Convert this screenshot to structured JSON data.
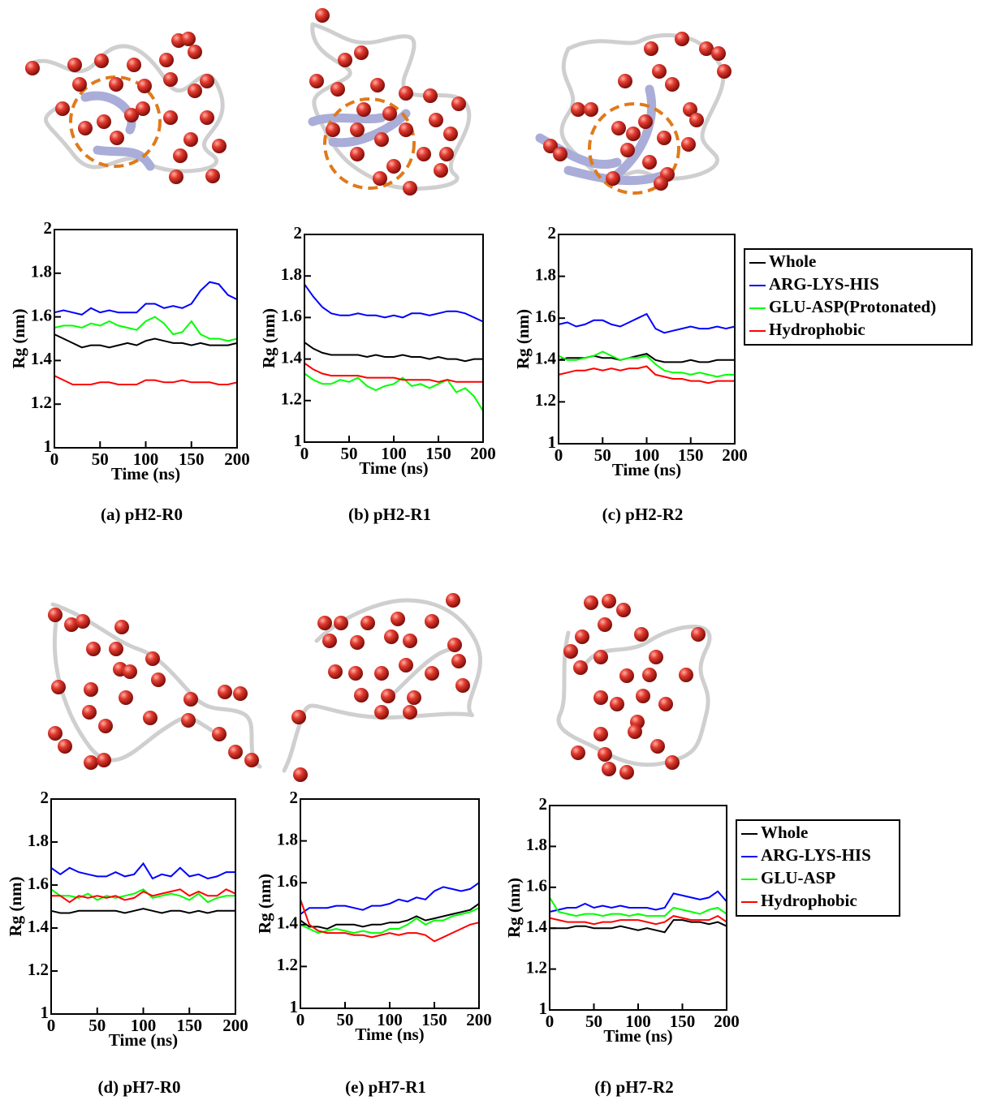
{
  "chart_data": [
    {
      "type": "line",
      "caption": "(a) pH2-R0",
      "xlabel": "Time (ns)",
      "ylabel": "Rg (nm)",
      "xlim": [
        0,
        200
      ],
      "ylim": [
        1,
        2
      ],
      "xticks": [
        0,
        50,
        100,
        150,
        200
      ],
      "yticks": [
        1,
        1.2,
        1.4,
        1.6,
        1.8,
        2
      ],
      "x": [
        0,
        10,
        20,
        30,
        40,
        50,
        60,
        70,
        80,
        90,
        100,
        110,
        120,
        130,
        140,
        150,
        160,
        170,
        180,
        190,
        200
      ],
      "series": [
        {
          "color": "#000000",
          "values": [
            1.52,
            1.5,
            1.48,
            1.46,
            1.47,
            1.47,
            1.46,
            1.47,
            1.48,
            1.47,
            1.49,
            1.5,
            1.49,
            1.48,
            1.48,
            1.47,
            1.48,
            1.47,
            1.47,
            1.47,
            1.48
          ]
        },
        {
          "color": "#0000ff",
          "values": [
            1.62,
            1.63,
            1.62,
            1.61,
            1.64,
            1.62,
            1.63,
            1.62,
            1.62,
            1.62,
            1.66,
            1.66,
            1.64,
            1.65,
            1.64,
            1.66,
            1.72,
            1.76,
            1.75,
            1.7,
            1.68
          ]
        },
        {
          "color": "#00ff00",
          "values": [
            1.55,
            1.56,
            1.56,
            1.55,
            1.57,
            1.56,
            1.58,
            1.56,
            1.55,
            1.54,
            1.58,
            1.6,
            1.57,
            1.52,
            1.53,
            1.58,
            1.52,
            1.5,
            1.5,
            1.49,
            1.5
          ]
        },
        {
          "color": "#ff0000",
          "values": [
            1.33,
            1.31,
            1.29,
            1.29,
            1.29,
            1.3,
            1.3,
            1.29,
            1.29,
            1.29,
            1.31,
            1.31,
            1.3,
            1.3,
            1.31,
            1.3,
            1.3,
            1.3,
            1.29,
            1.29,
            1.3
          ]
        }
      ]
    },
    {
      "type": "line",
      "caption": "(b) pH2-R1",
      "xlabel": "Time (ns)",
      "ylabel": "Rg (nm)",
      "xlim": [
        0,
        200
      ],
      "ylim": [
        1,
        2
      ],
      "xticks": [
        0,
        50,
        100,
        150,
        200
      ],
      "yticks": [
        1,
        1.2,
        1.4,
        1.6,
        1.8,
        2
      ],
      "x": [
        0,
        10,
        20,
        30,
        40,
        50,
        60,
        70,
        80,
        90,
        100,
        110,
        120,
        130,
        140,
        150,
        160,
        170,
        180,
        190,
        200
      ],
      "series": [
        {
          "color": "#000000",
          "values": [
            1.48,
            1.45,
            1.43,
            1.42,
            1.42,
            1.42,
            1.42,
            1.41,
            1.42,
            1.41,
            1.41,
            1.42,
            1.41,
            1.41,
            1.4,
            1.41,
            1.4,
            1.4,
            1.39,
            1.4,
            1.4
          ]
        },
        {
          "color": "#0000ff",
          "values": [
            1.76,
            1.7,
            1.65,
            1.62,
            1.61,
            1.61,
            1.62,
            1.61,
            1.61,
            1.6,
            1.61,
            1.6,
            1.62,
            1.62,
            1.61,
            1.62,
            1.63,
            1.63,
            1.62,
            1.6,
            1.58
          ]
        },
        {
          "color": "#00ff00",
          "values": [
            1.33,
            1.3,
            1.28,
            1.28,
            1.3,
            1.29,
            1.31,
            1.27,
            1.25,
            1.27,
            1.28,
            1.31,
            1.27,
            1.28,
            1.26,
            1.28,
            1.3,
            1.24,
            1.26,
            1.22,
            1.15
          ]
        },
        {
          "color": "#ff0000",
          "values": [
            1.38,
            1.35,
            1.33,
            1.32,
            1.32,
            1.32,
            1.32,
            1.31,
            1.31,
            1.31,
            1.31,
            1.3,
            1.3,
            1.3,
            1.3,
            1.29,
            1.3,
            1.29,
            1.29,
            1.29,
            1.29
          ]
        }
      ]
    },
    {
      "type": "line",
      "caption": "(c) pH2-R2",
      "xlabel": "Time (ns)",
      "ylabel": "Rg (nm)",
      "xlim": [
        0,
        200
      ],
      "ylim": [
        1,
        2
      ],
      "xticks": [
        0,
        50,
        100,
        150,
        200
      ],
      "yticks": [
        1,
        1.2,
        1.4,
        1.6,
        1.8,
        2
      ],
      "legend": "right",
      "x": [
        0,
        10,
        20,
        30,
        40,
        50,
        60,
        70,
        80,
        90,
        100,
        110,
        120,
        130,
        140,
        150,
        160,
        170,
        180,
        190,
        200
      ],
      "series": [
        {
          "name": "Whole",
          "color": "#000000",
          "values": [
            1.4,
            1.41,
            1.41,
            1.41,
            1.42,
            1.41,
            1.41,
            1.4,
            1.41,
            1.42,
            1.43,
            1.4,
            1.39,
            1.39,
            1.39,
            1.4,
            1.39,
            1.39,
            1.4,
            1.4,
            1.4
          ]
        },
        {
          "name": "ARG-LYS-HIS",
          "color": "#0000ff",
          "values": [
            1.57,
            1.58,
            1.56,
            1.57,
            1.59,
            1.59,
            1.57,
            1.56,
            1.58,
            1.6,
            1.62,
            1.55,
            1.53,
            1.54,
            1.55,
            1.56,
            1.55,
            1.55,
            1.56,
            1.55,
            1.56
          ]
        },
        {
          "name": "GLU-ASP(Protonated)",
          "color": "#00ff00",
          "values": [
            1.42,
            1.4,
            1.4,
            1.41,
            1.42,
            1.44,
            1.42,
            1.4,
            1.41,
            1.41,
            1.42,
            1.38,
            1.35,
            1.34,
            1.34,
            1.33,
            1.34,
            1.33,
            1.32,
            1.33,
            1.33
          ]
        },
        {
          "name": "Hydrophobic",
          "color": "#ff0000",
          "values": [
            1.33,
            1.34,
            1.35,
            1.35,
            1.36,
            1.35,
            1.36,
            1.35,
            1.36,
            1.36,
            1.37,
            1.33,
            1.32,
            1.31,
            1.31,
            1.3,
            1.3,
            1.29,
            1.3,
            1.3,
            1.3
          ]
        }
      ]
    },
    {
      "type": "line",
      "caption": "(d) pH7-R0",
      "xlabel": "Time (ns)",
      "ylabel": "Rg (nm)",
      "xlim": [
        0,
        200
      ],
      "ylim": [
        1,
        2
      ],
      "xticks": [
        0,
        50,
        100,
        150,
        200
      ],
      "yticks": [
        1,
        1.2,
        1.4,
        1.6,
        1.8,
        2
      ],
      "x": [
        0,
        10,
        20,
        30,
        40,
        50,
        60,
        70,
        80,
        90,
        100,
        110,
        120,
        130,
        140,
        150,
        160,
        170,
        180,
        190,
        200
      ],
      "series": [
        {
          "color": "#000000",
          "values": [
            1.48,
            1.47,
            1.47,
            1.48,
            1.48,
            1.48,
            1.48,
            1.48,
            1.47,
            1.48,
            1.49,
            1.48,
            1.47,
            1.48,
            1.48,
            1.47,
            1.48,
            1.47,
            1.48,
            1.48,
            1.48
          ]
        },
        {
          "color": "#0000ff",
          "values": [
            1.68,
            1.65,
            1.68,
            1.66,
            1.65,
            1.64,
            1.64,
            1.66,
            1.64,
            1.65,
            1.7,
            1.63,
            1.65,
            1.64,
            1.68,
            1.64,
            1.65,
            1.63,
            1.64,
            1.66,
            1.66
          ]
        },
        {
          "color": "#00ff00",
          "values": [
            1.58,
            1.55,
            1.55,
            1.54,
            1.56,
            1.53,
            1.55,
            1.54,
            1.55,
            1.56,
            1.58,
            1.54,
            1.55,
            1.56,
            1.55,
            1.53,
            1.56,
            1.52,
            1.54,
            1.55,
            1.55
          ]
        },
        {
          "color": "#ff0000",
          "values": [
            1.55,
            1.55,
            1.52,
            1.55,
            1.54,
            1.55,
            1.54,
            1.55,
            1.53,
            1.54,
            1.57,
            1.55,
            1.56,
            1.57,
            1.58,
            1.55,
            1.57,
            1.55,
            1.55,
            1.58,
            1.56
          ]
        }
      ]
    },
    {
      "type": "line",
      "caption": "(e) pH7-R1",
      "xlabel": "Time (ns)",
      "ylabel": "Rg (nm)",
      "xlim": [
        0,
        200
      ],
      "ylim": [
        1,
        2
      ],
      "xticks": [
        0,
        50,
        100,
        150,
        200
      ],
      "yticks": [
        1,
        1.2,
        1.4,
        1.6,
        1.8,
        2
      ],
      "x": [
        0,
        10,
        20,
        30,
        40,
        50,
        60,
        70,
        80,
        90,
        100,
        110,
        120,
        130,
        140,
        150,
        160,
        170,
        180,
        190,
        200
      ],
      "series": [
        {
          "color": "#000000",
          "values": [
            1.42,
            1.39,
            1.39,
            1.38,
            1.4,
            1.4,
            1.4,
            1.39,
            1.4,
            1.4,
            1.41,
            1.41,
            1.42,
            1.44,
            1.42,
            1.43,
            1.44,
            1.45,
            1.46,
            1.47,
            1.5
          ]
        },
        {
          "color": "#0000ff",
          "values": [
            1.45,
            1.48,
            1.48,
            1.48,
            1.49,
            1.49,
            1.48,
            1.47,
            1.49,
            1.49,
            1.5,
            1.52,
            1.51,
            1.53,
            1.52,
            1.56,
            1.58,
            1.57,
            1.56,
            1.57,
            1.6
          ]
        },
        {
          "color": "#00ff00",
          "values": [
            1.4,
            1.38,
            1.36,
            1.37,
            1.38,
            1.37,
            1.36,
            1.37,
            1.36,
            1.36,
            1.38,
            1.38,
            1.4,
            1.43,
            1.4,
            1.42,
            1.42,
            1.44,
            1.45,
            1.46,
            1.48
          ]
        },
        {
          "color": "#ff0000",
          "values": [
            1.52,
            1.4,
            1.37,
            1.36,
            1.36,
            1.36,
            1.35,
            1.35,
            1.34,
            1.35,
            1.36,
            1.35,
            1.36,
            1.36,
            1.35,
            1.32,
            1.34,
            1.36,
            1.38,
            1.4,
            1.41
          ]
        }
      ]
    },
    {
      "type": "line",
      "caption": "(f) pH7-R2",
      "xlabel": "Time (ns)",
      "ylabel": "Rg (nm)",
      "xlim": [
        0,
        200
      ],
      "ylim": [
        1,
        2
      ],
      "xticks": [
        0,
        50,
        100,
        150,
        200
      ],
      "yticks": [
        1,
        1.2,
        1.4,
        1.6,
        1.8,
        2
      ],
      "legend": "right",
      "x": [
        0,
        10,
        20,
        30,
        40,
        50,
        60,
        70,
        80,
        90,
        100,
        110,
        120,
        130,
        140,
        150,
        160,
        170,
        180,
        190,
        200
      ],
      "series": [
        {
          "name": "Whole",
          "color": "#000000",
          "values": [
            1.4,
            1.4,
            1.4,
            1.41,
            1.41,
            1.4,
            1.4,
            1.4,
            1.41,
            1.4,
            1.39,
            1.4,
            1.39,
            1.38,
            1.44,
            1.44,
            1.43,
            1.43,
            1.42,
            1.43,
            1.41
          ]
        },
        {
          "name": "ARG-LYS-HIS",
          "color": "#0000ff",
          "values": [
            1.48,
            1.49,
            1.5,
            1.5,
            1.52,
            1.5,
            1.51,
            1.5,
            1.51,
            1.5,
            1.5,
            1.5,
            1.49,
            1.5,
            1.57,
            1.56,
            1.55,
            1.54,
            1.55,
            1.58,
            1.53
          ]
        },
        {
          "name": "GLU-ASP",
          "color": "#00ff00",
          "values": [
            1.55,
            1.48,
            1.47,
            1.46,
            1.47,
            1.47,
            1.46,
            1.47,
            1.47,
            1.46,
            1.47,
            1.46,
            1.46,
            1.46,
            1.5,
            1.49,
            1.48,
            1.47,
            1.49,
            1.5,
            1.47
          ]
        },
        {
          "name": "Hydrophobic",
          "color": "#ff0000",
          "values": [
            1.45,
            1.44,
            1.43,
            1.43,
            1.43,
            1.42,
            1.43,
            1.43,
            1.44,
            1.44,
            1.44,
            1.43,
            1.42,
            1.43,
            1.46,
            1.45,
            1.44,
            1.44,
            1.44,
            1.46,
            1.43
          ]
        }
      ]
    }
  ]
}
